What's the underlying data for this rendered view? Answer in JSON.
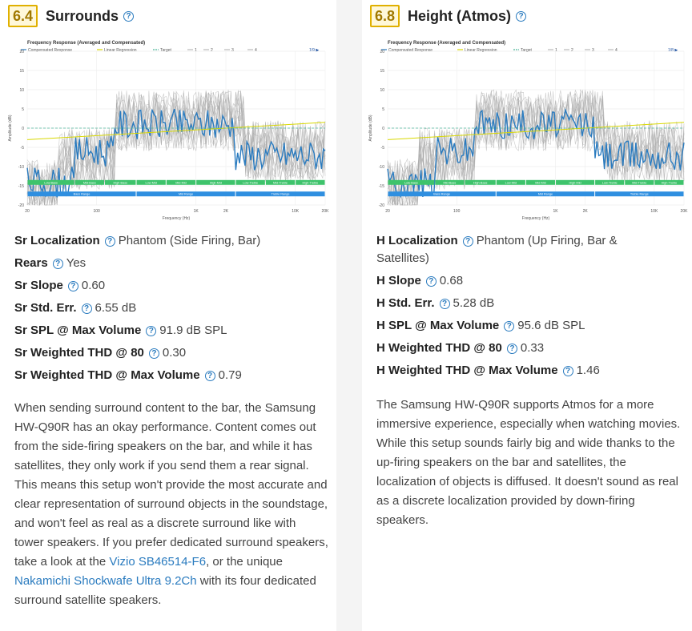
{
  "left": {
    "score": "6.4",
    "title": "Surrounds",
    "chart": {
      "title": "Frequency Response (Averaged and Compensated)",
      "legend": [
        "Compensated Response",
        "Linear Regression",
        "Target",
        "1",
        "2",
        "3",
        "4"
      ],
      "pager": "1/9 ▶",
      "ylabel": "Amplitude (dB)",
      "xlabel": "Frequency (Hz)",
      "yticks": [
        "20",
        "15",
        "10",
        "5",
        "0",
        "-5",
        "-10",
        "-15",
        "-20"
      ],
      "xticks": [
        "20",
        "100",
        "1K",
        "2K",
        "10K",
        "20K"
      ],
      "bands1": [
        "Low-Bass",
        "Mid-Bass",
        "High-Bass",
        "Low-Mid",
        "Mid-Mid",
        "High-Mid",
        "Low-Treble",
        "Mid-Treble",
        "High-Treble"
      ],
      "bands2": [
        "Bass Range",
        "Mid Range",
        "Treble Range"
      ]
    },
    "rows": [
      {
        "label": "Sr Localization",
        "value": "Phantom (Side Firing, Bar)"
      },
      {
        "label": "Rears",
        "value": "Yes"
      },
      {
        "label": "Sr Slope",
        "value": "0.60"
      },
      {
        "label": "Sr Std. Err.",
        "value": "6.55 dB"
      },
      {
        "label": "Sr SPL @ Max Volume",
        "value": "91.9 dB SPL"
      },
      {
        "label": "Sr Weighted THD @ 80",
        "value": "0.30"
      },
      {
        "label": "Sr Weighted THD @ Max Volume",
        "value": "0.79"
      }
    ],
    "para_1": "When sending surround content to the bar, the Samsung HW-Q90R has an okay performance. Content comes out from the side-firing speakers on the bar, and while it has satellites, they only work if you send them a rear signal. This means this setup won't provide the most accurate and clear representation of surround objects in the soundstage, and won't feel as real as a discrete surround like with tower speakers. If you prefer dedicated surround speakers, take a look at the ",
    "link_1": "Vizio SB46514-F6",
    "para_2": ", or the unique ",
    "link_2": "Nakamichi Shockwafe Ultra 9.2Ch",
    "para_3": " with its four dedicated surround satellite speakers."
  },
  "right": {
    "score": "6.8",
    "title": "Height (Atmos)",
    "chart": {
      "title": "Frequency Response (Averaged and Compensated)",
      "legend": [
        "Compensated Response",
        "Linear Regression",
        "Target",
        "1",
        "2",
        "3",
        "4"
      ],
      "pager": "1/8 ▶",
      "ylabel": "Amplitude (dB)",
      "xlabel": "Frequency (Hz)",
      "yticks": [
        "20",
        "15",
        "10",
        "5",
        "0",
        "-5",
        "-10",
        "-15",
        "-20"
      ],
      "xticks": [
        "20",
        "100",
        "1K",
        "2K",
        "10K",
        "20K"
      ],
      "bands1": [
        "Low-Bass",
        "Mid-Bass",
        "High-Bass",
        "Low-Mid",
        "Mid-Mid",
        "High-Mid",
        "Low-Treble",
        "Mid-Treble",
        "High-Treble"
      ],
      "bands2": [
        "Bass Range",
        "Mid Range",
        "Treble Range"
      ]
    },
    "rows": [
      {
        "label": "H Localization",
        "value": "Phantom (Up Firing, Bar & Satellites)"
      },
      {
        "label": "H Slope",
        "value": "0.68"
      },
      {
        "label": "H Std. Err.",
        "value": "5.28 dB"
      },
      {
        "label": "H SPL @ Max Volume",
        "value": "95.6 dB SPL"
      },
      {
        "label": "H Weighted THD @ 80",
        "value": "0.33"
      },
      {
        "label": "H Weighted THD @ Max Volume",
        "value": "1.46"
      }
    ],
    "para_1": "The Samsung HW-Q90R supports Atmos for a more immersive experience, especially when watching movies. While this setup sounds fairly big and wide thanks to the up-firing speakers on the bar and satellites, the localization of objects is diffused. It doesn't sound as real as a discrete localization provided by down-firing speakers."
  },
  "colors": {
    "accent": "#2a7bbf",
    "score_border": "#e0b000",
    "band_green": "#3ec36b",
    "band_blue": "#2f8fe0",
    "regression": "#d8d800",
    "target": "#4fb89a",
    "measurements": "#a8a8a8"
  },
  "icons": {
    "help": "question-circle-icon",
    "next": "triangle-right-icon"
  }
}
